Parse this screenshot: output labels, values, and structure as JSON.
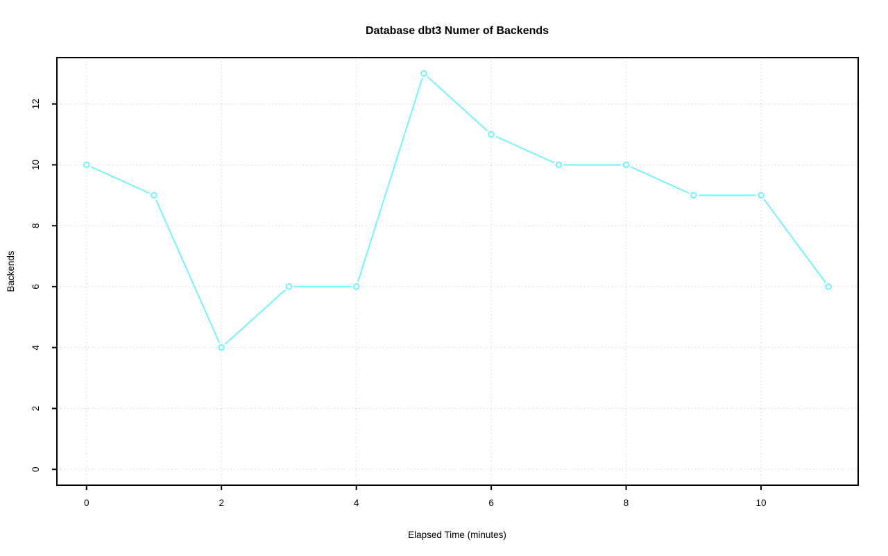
{
  "page": {
    "background": "#FFFFFF"
  },
  "chart_data": {
    "type": "line",
    "title": "Database dbt3 Numer of Backends",
    "xlabel": "Elapsed Time (minutes)",
    "ylabel": "Backends",
    "x": [
      0,
      1,
      2,
      3,
      4,
      5,
      6,
      7,
      8,
      9,
      10,
      11
    ],
    "y": [
      10,
      9,
      4,
      6,
      6,
      13,
      11,
      10,
      10,
      9,
      9,
      6
    ],
    "series": [
      {
        "name": "Backends",
        "values": [
          10,
          9,
          4,
          6,
          6,
          13,
          11,
          10,
          10,
          9,
          9,
          6
        ]
      }
    ],
    "x_ticks": [
      0,
      2,
      4,
      6,
      8,
      10
    ],
    "y_ticks": [
      0,
      2,
      4,
      6,
      8,
      10,
      12
    ],
    "xlim": [
      -0.44,
      11.44
    ],
    "ylim": [
      -0.52,
      13.52
    ],
    "grid": "dotted",
    "legend_position": "none",
    "plot_style": "points-and-lines-with-gaps",
    "marker": "open-circle",
    "colors": {
      "line": "#76F2FF",
      "marker": "#76F2FF",
      "grid": "#D4D4D4",
      "axis": "#000000",
      "text": "#000000",
      "background": "#FFFFFF"
    }
  }
}
